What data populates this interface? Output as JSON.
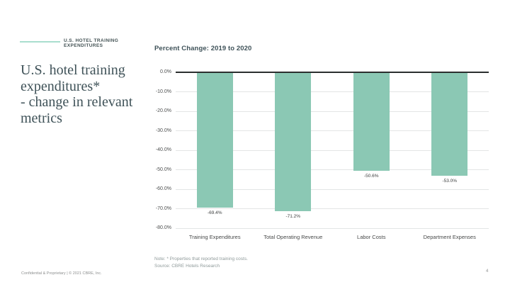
{
  "slide": {
    "kicker_label": "U.S. HOTEL TRAINING\nEXPENDITURES",
    "title": "U.S. hotel training\nexpenditures*\n- change in relevant\nmetrics",
    "footer_left": "Confidential & Proprietary | © 2021 CBRE, Inc.",
    "page_number": "4"
  },
  "notes": {
    "note_line": "Note: * Properties that reported training costs.",
    "source_line": "Source: CBRE Hotels Research"
  },
  "chart_data": {
    "type": "bar",
    "title": "Percent Change: 2019 to 2020",
    "categories": [
      "Training Expenditures",
      "Total Operating Revenue",
      "Labor Costs",
      "Department Expenses"
    ],
    "values": [
      -69.4,
      -71.2,
      -50.6,
      -53.0
    ],
    "value_labels": [
      "-69.4%",
      "-71.2%",
      "-50.6%",
      "-53.0%"
    ],
    "xlabel": "",
    "ylabel": "",
    "ylim": [
      -80,
      0
    ],
    "ytick_labels": [
      "0.0%",
      "-10.0%",
      "-20.0%",
      "-30.0%",
      "-40.0%",
      "-50.0%",
      "-60.0%",
      "-70.0%",
      "-80.0%"
    ],
    "grid": true,
    "legend_position": "none",
    "bar_color": "#8BC8B4"
  },
  "colors": {
    "accent_teal": "#8BC8B4",
    "rule_teal": "#A9DECE",
    "dark_slate": "#435254",
    "axis_text": "#4D4F4F",
    "gridline": "#E3E5E5",
    "zero_line": "#2B2F2F",
    "muted_note_text": "#8F9A9A",
    "footer_text": "#8E9090"
  }
}
